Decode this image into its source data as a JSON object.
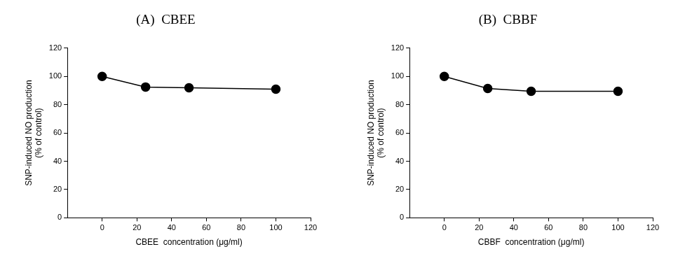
{
  "chart_data": [
    {
      "type": "line",
      "title": "(A)  CBEE",
      "xlabel": "CBEE  concentration (μg/ml)",
      "ylabel": [
        "SNP-induced NO production",
        "(% of control)"
      ],
      "x": [
        0,
        25,
        50,
        100
      ],
      "values": [
        100,
        92.5,
        92,
        91
      ],
      "color": "#000000",
      "marker": "circle",
      "grid": false,
      "xlim": [
        -20,
        120
      ],
      "xticks": [
        0,
        20,
        40,
        60,
        80,
        100,
        120
      ],
      "ylim": [
        0,
        120
      ],
      "yticks": [
        0,
        20,
        40,
        60,
        80,
        100,
        120
      ]
    },
    {
      "type": "line",
      "title": "(B)  CBBF",
      "xlabel": "CBBF  concentration (μg/ml)",
      "ylabel": [
        "SNP-induced NO production",
        "(% of control)"
      ],
      "x": [
        0,
        25,
        50,
        100
      ],
      "values": [
        100,
        91.5,
        89.5,
        89.5
      ],
      "color": "#000000",
      "marker": "circle",
      "grid": false,
      "xlim": [
        -20,
        120
      ],
      "xticks": [
        0,
        20,
        40,
        60,
        80,
        100,
        120
      ],
      "ylim": [
        0,
        120
      ],
      "yticks": [
        0,
        20,
        40,
        60,
        80,
        100,
        120
      ]
    }
  ]
}
